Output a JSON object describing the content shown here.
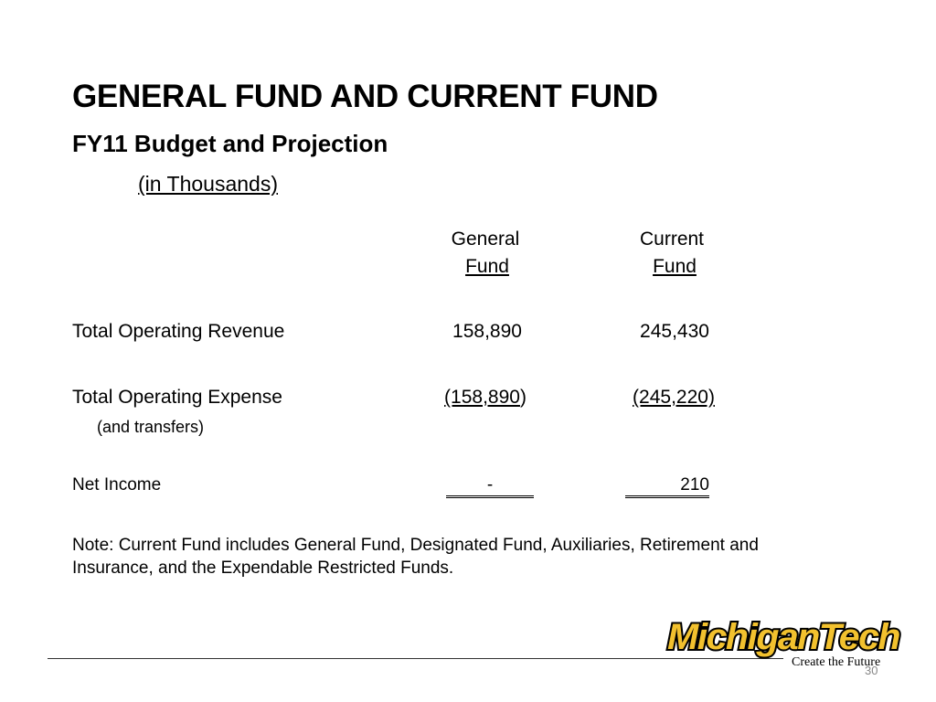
{
  "slide": {
    "title": "GENERAL FUND AND CURRENT FUND",
    "subtitle": "FY11 Budget and Projection",
    "units": "(in Thousands)"
  },
  "table": {
    "headers": [
      {
        "line1": "General",
        "line2": "Fund"
      },
      {
        "line1": "Current",
        "line2": "Fund"
      }
    ],
    "rows": [
      {
        "label": "Total Operating Revenue",
        "general": "158,890",
        "current": "245,430"
      },
      {
        "label": "Total Operating Expense",
        "sublabel": "(and transfers)",
        "general_num": "(158,890",
        "general_close": ")",
        "current": "(245,220)"
      },
      {
        "label": "Net Income",
        "general": "-",
        "current": "210"
      }
    ]
  },
  "note": "Note:  Current Fund includes General Fund, Designated Fund, Auxiliaries, Retirement and Insurance, and the Expendable Restricted Funds.",
  "logo": {
    "text": "MichiganTech",
    "tagline": "Create the Future",
    "colors": {
      "gold": "#F2C12E",
      "black": "#000000"
    }
  },
  "page_number": "30"
}
